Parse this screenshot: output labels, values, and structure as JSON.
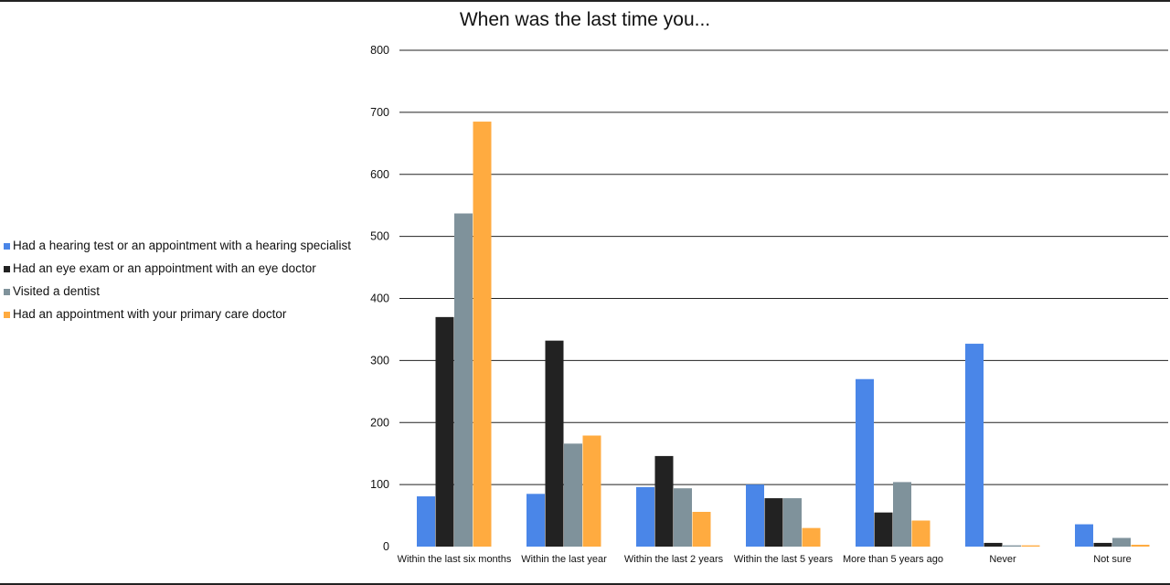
{
  "chart_data": {
    "type": "bar",
    "title": "When was the last time you...",
    "xlabel": "",
    "ylabel": "",
    "ylim": [
      0,
      800
    ],
    "yticks": [
      0,
      100,
      200,
      300,
      400,
      500,
      600,
      700,
      800
    ],
    "grid": true,
    "legend_position": "left",
    "categories": [
      "Within the last six months",
      "Within the last year",
      "Within the last 2 years",
      "Within the last 5 years",
      "More than 5 years ago",
      "Never",
      "Not sure"
    ],
    "series": [
      {
        "name": "Had a hearing test or an appointment with a hearing specialist",
        "color": "#4a86e8",
        "values": [
          81,
          85,
          96,
          100,
          270,
          327,
          36
        ]
      },
      {
        "name": "Had an eye exam or an appointment with an eye doctor",
        "color": "#222222",
        "values": [
          370,
          332,
          146,
          78,
          55,
          6,
          6
        ]
      },
      {
        "name": "Visited a dentist",
        "color": "#7f929b",
        "values": [
          537,
          166,
          94,
          78,
          104,
          2,
          14
        ]
      },
      {
        "name": "Had an appointment with your primary care doctor",
        "color": "#ffab40",
        "values": [
          685,
          179,
          56,
          30,
          42,
          2,
          3
        ]
      }
    ]
  }
}
